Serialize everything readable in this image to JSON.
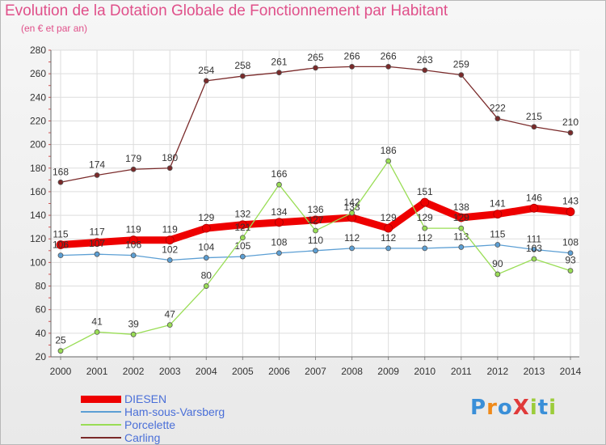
{
  "title": "Evolution de la Dotation Globale de Fonctionnement par Habitant",
  "subtitle": "(en € et par an)",
  "logo_text": "ProXiti",
  "chart_data": {
    "type": "line",
    "x": [
      "2000",
      "2001",
      "2002",
      "2003",
      "2004",
      "2005",
      "2006",
      "2007",
      "2008",
      "2009",
      "2010",
      "2011",
      "2012",
      "2013",
      "2014"
    ],
    "ylim": [
      20,
      280
    ],
    "yticks": [
      20,
      40,
      60,
      80,
      100,
      120,
      140,
      160,
      180,
      200,
      220,
      240,
      260,
      280
    ],
    "grid": true,
    "legend_position": "bottom-left",
    "series": [
      {
        "name": "DIESEN",
        "color": "#ee0000",
        "values": [
          115,
          117,
          119,
          119,
          129,
          132,
          134,
          136,
          138,
          129,
          151,
          138,
          141,
          146,
          143
        ]
      },
      {
        "name": "Ham-sous-Varsberg",
        "color": "#5c9fd4",
        "values": [
          106,
          107,
          106,
          102,
          104,
          105,
          108,
          110,
          112,
          112,
          112,
          113,
          115,
          111,
          108
        ]
      },
      {
        "name": "Porcelette",
        "color": "#99dd55",
        "values": [
          25,
          41,
          39,
          47,
          80,
          121,
          166,
          127,
          142,
          186,
          129,
          129,
          90,
          103,
          93
        ]
      },
      {
        "name": "Carling",
        "color": "#7a2a2a",
        "values": [
          168,
          174,
          179,
          180,
          254,
          258,
          261,
          265,
          266,
          266,
          263,
          259,
          222,
          215,
          210
        ]
      }
    ]
  }
}
